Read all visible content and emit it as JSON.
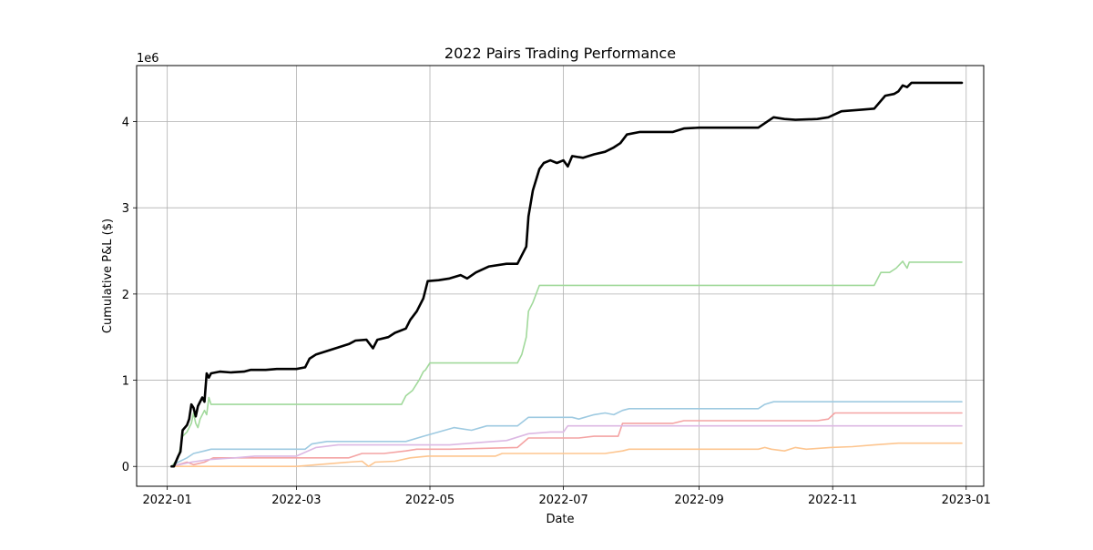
{
  "chart_data": {
    "type": "line",
    "title": "2022 Pairs Trading Performance",
    "xlabel": "Date",
    "ylabel": "Cumulative P&L ($)",
    "y_multiplier_label": "1e6",
    "xlim": [
      "2021-12-18",
      "2023-01-09"
    ],
    "ylim": [
      -0.23,
      4.65
    ],
    "x_ticks": [
      "2022-01",
      "2022-03",
      "2022-05",
      "2022-07",
      "2022-09",
      "2022-11",
      "2023-01"
    ],
    "x_tick_dates": [
      "2022-01-01",
      "2022-03-01",
      "2022-05-01",
      "2022-07-01",
      "2022-09-01",
      "2022-11-01",
      "2023-01-01"
    ],
    "y_ticks": [
      "0",
      "1",
      "2",
      "3",
      "4"
    ],
    "y_tick_values": [
      0,
      1,
      2,
      3,
      4
    ],
    "grid": true,
    "series": [
      {
        "color": "#a1d99b",
        "points": [
          [
            "2022-01-03",
            0
          ],
          [
            "2022-01-06",
            0.1
          ],
          [
            "2022-01-08",
            0.35
          ],
          [
            "2022-01-10",
            0.4
          ],
          [
            "2022-01-12",
            0.5
          ],
          [
            "2022-01-13",
            0.62
          ],
          [
            "2022-01-14",
            0.5
          ],
          [
            "2022-01-15",
            0.45
          ],
          [
            "2022-01-16",
            0.55
          ],
          [
            "2022-01-18",
            0.65
          ],
          [
            "2022-01-19",
            0.6
          ],
          [
            "2022-01-20",
            0.8
          ],
          [
            "2022-01-21",
            0.72
          ],
          [
            "2022-04-18",
            0.72
          ],
          [
            "2022-04-20",
            0.82
          ],
          [
            "2022-04-23",
            0.88
          ],
          [
            "2022-04-26",
            1.0
          ],
          [
            "2022-04-28",
            1.1
          ],
          [
            "2022-04-29",
            1.12
          ],
          [
            "2022-05-01",
            1.2
          ],
          [
            "2022-06-10",
            1.2
          ],
          [
            "2022-06-12",
            1.3
          ],
          [
            "2022-06-14",
            1.5
          ],
          [
            "2022-06-15",
            1.8
          ],
          [
            "2022-06-17",
            1.9
          ],
          [
            "2022-06-20",
            2.1
          ],
          [
            "2022-11-20",
            2.1
          ],
          [
            "2022-11-23",
            2.25
          ],
          [
            "2022-11-27",
            2.25
          ],
          [
            "2022-11-30",
            2.3
          ],
          [
            "2022-12-03",
            2.38
          ],
          [
            "2022-12-05",
            2.3
          ],
          [
            "2022-12-06",
            2.37
          ],
          [
            "2022-12-30",
            2.37
          ]
        ]
      },
      {
        "color": "#9ecae1",
        "points": [
          [
            "2022-01-03",
            0
          ],
          [
            "2022-01-06",
            0.05
          ],
          [
            "2022-01-10",
            0.1
          ],
          [
            "2022-01-13",
            0.15
          ],
          [
            "2022-01-18",
            0.18
          ],
          [
            "2022-01-21",
            0.2
          ],
          [
            "2022-03-05",
            0.2
          ],
          [
            "2022-03-08",
            0.26
          ],
          [
            "2022-03-15",
            0.29
          ],
          [
            "2022-04-20",
            0.29
          ],
          [
            "2022-04-28",
            0.35
          ],
          [
            "2022-05-05",
            0.4
          ],
          [
            "2022-05-12",
            0.45
          ],
          [
            "2022-05-20",
            0.42
          ],
          [
            "2022-05-27",
            0.47
          ],
          [
            "2022-06-10",
            0.47
          ],
          [
            "2022-06-15",
            0.57
          ],
          [
            "2022-07-05",
            0.57
          ],
          [
            "2022-07-08",
            0.55
          ],
          [
            "2022-07-15",
            0.6
          ],
          [
            "2022-07-20",
            0.62
          ],
          [
            "2022-07-24",
            0.6
          ],
          [
            "2022-07-28",
            0.65
          ],
          [
            "2022-07-31",
            0.67
          ],
          [
            "2022-09-28",
            0.67
          ],
          [
            "2022-10-01",
            0.72
          ],
          [
            "2022-10-05",
            0.75
          ],
          [
            "2022-12-30",
            0.75
          ]
        ]
      },
      {
        "color": "#f4a3a3",
        "points": [
          [
            "2022-01-03",
            0
          ],
          [
            "2022-01-06",
            0.02
          ],
          [
            "2022-01-10",
            0.05
          ],
          [
            "2022-01-13",
            0.02
          ],
          [
            "2022-01-18",
            0.05
          ],
          [
            "2022-01-22",
            0.1
          ],
          [
            "2022-02-01",
            0.1
          ],
          [
            "2022-03-25",
            0.1
          ],
          [
            "2022-03-31",
            0.15
          ],
          [
            "2022-04-10",
            0.15
          ],
          [
            "2022-04-20",
            0.18
          ],
          [
            "2022-04-25",
            0.2
          ],
          [
            "2022-05-10",
            0.2
          ],
          [
            "2022-06-10",
            0.22
          ],
          [
            "2022-06-15",
            0.33
          ],
          [
            "2022-07-08",
            0.33
          ],
          [
            "2022-07-15",
            0.35
          ],
          [
            "2022-07-26",
            0.35
          ],
          [
            "2022-07-28",
            0.5
          ],
          [
            "2022-08-20",
            0.5
          ],
          [
            "2022-08-25",
            0.53
          ],
          [
            "2022-10-25",
            0.53
          ],
          [
            "2022-10-30",
            0.55
          ],
          [
            "2022-11-02",
            0.62
          ],
          [
            "2022-12-30",
            0.62
          ]
        ]
      },
      {
        "color": "#dcb8e3",
        "points": [
          [
            "2022-01-03",
            0
          ],
          [
            "2022-01-12",
            0.05
          ],
          [
            "2022-01-20",
            0.08
          ],
          [
            "2022-02-01",
            0.1
          ],
          [
            "2022-02-10",
            0.12
          ],
          [
            "2022-03-01",
            0.12
          ],
          [
            "2022-03-10",
            0.22
          ],
          [
            "2022-03-20",
            0.25
          ],
          [
            "2022-05-10",
            0.25
          ],
          [
            "2022-05-25",
            0.28
          ],
          [
            "2022-06-05",
            0.3
          ],
          [
            "2022-06-15",
            0.38
          ],
          [
            "2022-06-25",
            0.4
          ],
          [
            "2022-07-01",
            0.4
          ],
          [
            "2022-07-03",
            0.47
          ],
          [
            "2022-12-30",
            0.47
          ]
        ]
      },
      {
        "color": "#fdc58f",
        "points": [
          [
            "2022-01-03",
            0
          ],
          [
            "2022-01-20",
            0
          ],
          [
            "2022-03-01",
            0
          ],
          [
            "2022-03-15",
            0.03
          ],
          [
            "2022-03-25",
            0.05
          ],
          [
            "2022-03-31",
            0.06
          ],
          [
            "2022-04-03",
            0
          ],
          [
            "2022-04-06",
            0.05
          ],
          [
            "2022-04-15",
            0.06
          ],
          [
            "2022-04-22",
            0.1
          ],
          [
            "2022-04-30",
            0.12
          ],
          [
            "2022-05-31",
            0.12
          ],
          [
            "2022-06-03",
            0.15
          ],
          [
            "2022-07-20",
            0.15
          ],
          [
            "2022-07-28",
            0.18
          ],
          [
            "2022-07-31",
            0.2
          ],
          [
            "2022-09-28",
            0.2
          ],
          [
            "2022-10-01",
            0.22
          ],
          [
            "2022-10-04",
            0.2
          ],
          [
            "2022-10-10",
            0.18
          ],
          [
            "2022-10-15",
            0.22
          ],
          [
            "2022-10-20",
            0.2
          ],
          [
            "2022-10-31",
            0.22
          ],
          [
            "2022-11-10",
            0.23
          ],
          [
            "2022-11-20",
            0.25
          ],
          [
            "2022-12-01",
            0.27
          ],
          [
            "2022-12-30",
            0.27
          ]
        ]
      },
      {
        "color": "#000000",
        "width": 2.6,
        "points": [
          [
            "2022-01-03",
            0
          ],
          [
            "2022-01-04",
            0
          ],
          [
            "2022-01-06",
            0.12
          ],
          [
            "2022-01-07",
            0.17
          ],
          [
            "2022-01-08",
            0.42
          ],
          [
            "2022-01-10",
            0.48
          ],
          [
            "2022-01-11",
            0.55
          ],
          [
            "2022-01-12",
            0.72
          ],
          [
            "2022-01-13",
            0.68
          ],
          [
            "2022-01-14",
            0.58
          ],
          [
            "2022-01-15",
            0.7
          ],
          [
            "2022-01-17",
            0.8
          ],
          [
            "2022-01-18",
            0.75
          ],
          [
            "2022-01-19",
            1.08
          ],
          [
            "2022-01-20",
            1.03
          ],
          [
            "2022-01-21",
            1.08
          ],
          [
            "2022-01-25",
            1.1
          ],
          [
            "2022-01-30",
            1.09
          ],
          [
            "2022-02-05",
            1.1
          ],
          [
            "2022-02-08",
            1.12
          ],
          [
            "2022-02-15",
            1.12
          ],
          [
            "2022-02-20",
            1.13
          ],
          [
            "2022-03-01",
            1.13
          ],
          [
            "2022-03-05",
            1.15
          ],
          [
            "2022-03-07",
            1.25
          ],
          [
            "2022-03-10",
            1.3
          ],
          [
            "2022-03-20",
            1.38
          ],
          [
            "2022-03-25",
            1.42
          ],
          [
            "2022-03-28",
            1.46
          ],
          [
            "2022-04-02",
            1.47
          ],
          [
            "2022-04-05",
            1.37
          ],
          [
            "2022-04-07",
            1.47
          ],
          [
            "2022-04-12",
            1.5
          ],
          [
            "2022-04-15",
            1.55
          ],
          [
            "2022-04-20",
            1.6
          ],
          [
            "2022-04-22",
            1.7
          ],
          [
            "2022-04-25",
            1.8
          ],
          [
            "2022-04-28",
            1.95
          ],
          [
            "2022-04-30",
            2.15
          ],
          [
            "2022-05-05",
            2.16
          ],
          [
            "2022-05-10",
            2.18
          ],
          [
            "2022-05-15",
            2.22
          ],
          [
            "2022-05-18",
            2.18
          ],
          [
            "2022-05-22",
            2.25
          ],
          [
            "2022-05-28",
            2.32
          ],
          [
            "2022-06-05",
            2.35
          ],
          [
            "2022-06-10",
            2.35
          ],
          [
            "2022-06-12",
            2.45
          ],
          [
            "2022-06-14",
            2.55
          ],
          [
            "2022-06-15",
            2.9
          ],
          [
            "2022-06-17",
            3.2
          ],
          [
            "2022-06-20",
            3.45
          ],
          [
            "2022-06-22",
            3.52
          ],
          [
            "2022-06-25",
            3.55
          ],
          [
            "2022-06-28",
            3.52
          ],
          [
            "2022-07-01",
            3.55
          ],
          [
            "2022-07-03",
            3.48
          ],
          [
            "2022-07-05",
            3.6
          ],
          [
            "2022-07-10",
            3.58
          ],
          [
            "2022-07-15",
            3.62
          ],
          [
            "2022-07-20",
            3.65
          ],
          [
            "2022-07-24",
            3.7
          ],
          [
            "2022-07-27",
            3.75
          ],
          [
            "2022-07-30",
            3.85
          ],
          [
            "2022-08-05",
            3.88
          ],
          [
            "2022-08-20",
            3.88
          ],
          [
            "2022-08-25",
            3.92
          ],
          [
            "2022-09-01",
            3.93
          ],
          [
            "2022-09-28",
            3.93
          ],
          [
            "2022-10-05",
            4.05
          ],
          [
            "2022-10-10",
            4.03
          ],
          [
            "2022-10-15",
            4.02
          ],
          [
            "2022-10-25",
            4.03
          ],
          [
            "2022-10-30",
            4.05
          ],
          [
            "2022-11-05",
            4.12
          ],
          [
            "2022-11-15",
            4.14
          ],
          [
            "2022-11-20",
            4.15
          ],
          [
            "2022-11-25",
            4.3
          ],
          [
            "2022-11-29",
            4.32
          ],
          [
            "2022-12-01",
            4.35
          ],
          [
            "2022-12-03",
            4.42
          ],
          [
            "2022-12-05",
            4.4
          ],
          [
            "2022-12-07",
            4.45
          ],
          [
            "2022-12-30",
            4.45
          ]
        ]
      }
    ]
  }
}
